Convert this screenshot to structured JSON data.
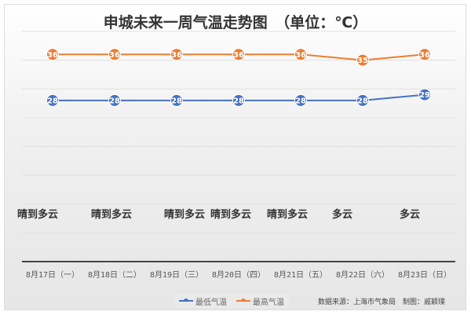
{
  "chart_data": {
    "type": "line",
    "title": "申城未来一周气温走势图　（单位：℃）",
    "categories": [
      "8月17日（一）",
      "8月18日（二）",
      "8月19日（三）",
      "8月20日（四）",
      "8月21日（五）",
      "8月22日（六）",
      "8月23日（日）"
    ],
    "weather": [
      "晴到多云",
      "晴到多云",
      "晴到多云",
      "晴到多云",
      "晴到多云",
      "多云",
      "多云"
    ],
    "series": [
      {
        "name": "最低气温",
        "color": "#4472c4",
        "values": [
          28,
          28,
          28,
          28,
          28,
          28,
          29
        ]
      },
      {
        "name": "最高气温",
        "color": "#ed7d31",
        "values": [
          36,
          36,
          36,
          36,
          36,
          35,
          36
        ]
      }
    ],
    "ylim": [
      0,
      40
    ],
    "ytick_step": 5,
    "grid": true,
    "legend": "bottom"
  },
  "source": "数据来源：上海市气象局　制图：戚颖璞"
}
